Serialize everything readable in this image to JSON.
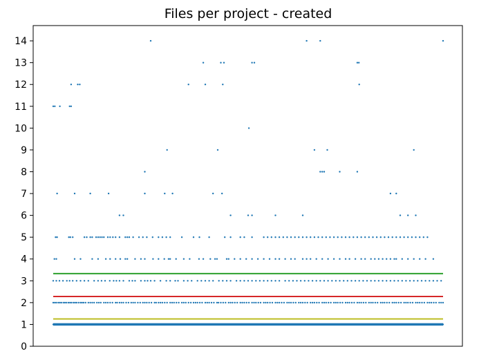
{
  "chart_data": {
    "type": "scatter",
    "title": "Files per project - created",
    "xlabel": "",
    "ylabel": "",
    "ylim": [
      0,
      14.7
    ],
    "yticks": [
      0,
      1,
      2,
      3,
      4,
      5,
      6,
      7,
      8,
      9,
      10,
      11,
      12,
      13,
      14
    ],
    "ytick_labels": [
      "0",
      "1",
      "2",
      "3",
      "4",
      "5",
      "6",
      "7",
      "8",
      "9",
      "10",
      "11",
      "12",
      "13",
      "14"
    ],
    "x_range": [
      0,
      100
    ],
    "x_ticks_visible": false,
    "grid": false,
    "series_color": "#1f77b4",
    "reference_lines": [
      {
        "value": 1.0,
        "color": "#1f77b4"
      },
      {
        "value": 1.25,
        "color": "#bcbd22"
      },
      {
        "value": 2.28,
        "color": "#d62728"
      },
      {
        "value": 3.33,
        "color": "#2ca02c"
      }
    ],
    "series": [
      {
        "values_by_level": [
          {
            "y": 1,
            "x": [
              0,
              0.5,
              1,
              1.5,
              2,
              2.5,
              3,
              3.5,
              4,
              4.5,
              5,
              5.5,
              6,
              6.5,
              7,
              7.5,
              8,
              8.5,
              9,
              9.5,
              10,
              10.5,
              11,
              11.5,
              12,
              12.5,
              13,
              13.5,
              14,
              14.5,
              15,
              15.5,
              16,
              16.5,
              17,
              17.5,
              18,
              18.5,
              19,
              19.5,
              20,
              20.5,
              21,
              21.5,
              22,
              22.5,
              23,
              23.5,
              24,
              24.5,
              25,
              25.5,
              26,
              26.5,
              27,
              27.5,
              28,
              28.5,
              29,
              29.5,
              30,
              30.5,
              31,
              31.5,
              32,
              32.5,
              33,
              33.5,
              34,
              34.5,
              35,
              35.5,
              36,
              36.5,
              37,
              37.5,
              38,
              38.5,
              39,
              39.5,
              40,
              40.5,
              41,
              41.5,
              42,
              42.5,
              43,
              43.5,
              44,
              44.5,
              45,
              45.5,
              46,
              46.5,
              47,
              47.5,
              48,
              48.5,
              49,
              49.5,
              50,
              50.5,
              51,
              51.5,
              52,
              52.5,
              53,
              53.5,
              54,
              54.5,
              55,
              55.5,
              56,
              56.5,
              57,
              57.5,
              58,
              58.5,
              59,
              59.5,
              60,
              60.5,
              61,
              61.5,
              62,
              62.5,
              63,
              63.5,
              64,
              64.5,
              65,
              65.5,
              66,
              66.5,
              67,
              67.5,
              68,
              68.5,
              69,
              69.5,
              70,
              70.5,
              71,
              71.5,
              72,
              72.5,
              73,
              73.5,
              74,
              74.5,
              75,
              75.5,
              76,
              76.5,
              77,
              77.5,
              78,
              78.5,
              79,
              79.5,
              80,
              80.5,
              81,
              81.5,
              82,
              82.5,
              83,
              83.5,
              84,
              84.5,
              85,
              85.5,
              86,
              86.5,
              87,
              87.5,
              88,
              88.5,
              89,
              89.5,
              90,
              90.5,
              91,
              91.5,
              92,
              92.5,
              93,
              93.5,
              94,
              94.5,
              95,
              95.5,
              96,
              96.5,
              97,
              97.5,
              98,
              98.5,
              99,
              99.5,
              100
            ]
          },
          {
            "y": 2,
            "x": [
              0,
              0.4,
              0.8,
              1.3,
              1.7,
              2.1,
              2.6,
              3,
              3.4,
              3.9,
              4.3,
              4.7,
              5.2,
              5.6,
              6,
              6.5,
              7,
              7.4,
              7.8,
              8.3,
              9,
              9.5,
              10,
              10.5,
              11.2,
              11.7,
              12.2,
              13,
              13.5,
              14,
              14.6,
              15.2,
              16,
              16.4,
              17,
              17.5,
              18,
              18.7,
              19.3,
              20,
              20.5,
              21,
              21.7,
              22.3,
              23,
              23.5,
              24,
              24.6,
              25.2,
              26,
              26.4,
              27,
              27.5,
              28,
              28.6,
              29.2,
              30,
              30.5,
              31,
              31.6,
              32.2,
              33,
              33.5,
              34,
              34.7,
              35.3,
              36,
              36.5,
              37,
              37.6,
              38.2,
              39,
              39.5,
              40,
              40.6,
              41.2,
              42,
              42.4,
              43,
              43.6,
              44.2,
              45,
              45.5,
              46,
              46.6,
              47.2,
              48,
              48.5,
              49,
              49.6,
              50.2,
              51,
              51.5,
              52,
              52.6,
              53.2,
              54,
              54.5,
              55,
              55.6,
              56.2,
              57,
              57.5,
              58,
              58.6,
              59.2,
              60,
              60.5,
              61,
              61.6,
              62.2,
              63,
              63.5,
              64,
              64.6,
              65.2,
              66,
              66.5,
              67,
              67.6,
              68.2,
              69,
              69.5,
              70,
              70.6,
              71.2,
              72,
              72.5,
              73,
              73.6,
              74.2,
              75,
              75.5,
              76,
              76.6,
              77.2,
              78,
              78.5,
              79,
              79.6,
              80.2,
              81,
              81.5,
              82,
              82.6,
              83.2,
              84,
              84.5,
              85,
              85.6,
              86.2,
              87,
              87.5,
              88,
              88.6,
              89.2,
              90,
              90.5,
              91,
              91.6,
              92.2,
              93,
              93.5,
              94,
              94.6,
              95.2,
              96,
              96.5,
              97,
              97.6,
              98.2,
              99,
              99.5,
              100
            ]
          },
          {
            "y": 3,
            "x": [
              0,
              0.8,
              1.6,
              2.5,
              3.5,
              4.2,
              5,
              6,
              7,
              8,
              9,
              10.5,
              11.5,
              12.4,
              13.3,
              14.5,
              15.5,
              16.2,
              17,
              18,
              19.5,
              20.3,
              21,
              22.5,
              23.5,
              24.2,
              25,
              26,
              27.5,
              29,
              30,
              31.3,
              32,
              33.5,
              34.5,
              35.5,
              37,
              38,
              39,
              40,
              41,
              42.5,
              43.5,
              44.5,
              45.5,
              47,
              48,
              49,
              50,
              51,
              52,
              53,
              54,
              55,
              56,
              57,
              58,
              59.5,
              60.5,
              61.5,
              62.5,
              63.5,
              64.5,
              65.5,
              66.5,
              67.5,
              68.5,
              69.5,
              70.5,
              71.5,
              72.5,
              73.5,
              74.5,
              75.5,
              76.5,
              77.5,
              78.5,
              79.5,
              80.5,
              81.5,
              82.5,
              83.5,
              84.5,
              85.5,
              86.5,
              87.5,
              88.5,
              89.5,
              90.5,
              91.5,
              92.5,
              93.5,
              94.5,
              95.5,
              96.5,
              97.5,
              98.5,
              99.5
            ]
          },
          {
            "y": 4,
            "x": [
              0.3,
              0.8,
              5.5,
              7,
              10,
              11.5,
              13.5,
              14.6,
              16,
              17.2,
              18.5,
              19,
              21,
              22.5,
              23.5,
              25.6,
              27,
              28.5,
              29.6,
              30,
              31.5,
              33.5,
              35,
              37.4,
              38.5,
              40.3,
              41.5,
              42,
              44.5,
              45,
              46.5,
              48,
              49.5,
              51,
              52.5,
              54,
              55.5,
              57,
              58,
              59.5,
              61,
              62,
              64,
              65,
              66,
              67.5,
              69,
              70.5,
              72,
              73.5,
              75,
              76,
              77.5,
              79,
              80,
              81.5,
              82.5,
              83.5,
              84.5,
              85.5,
              86.5,
              87.5,
              88,
              89.5,
              91,
              92.5,
              94,
              95.5,
              97.5
            ]
          },
          {
            "y": 5,
            "x": [
              0.6,
              1,
              4,
              4.4,
              5,
              8,
              8.6,
              9.5,
              10,
              11,
              11.5,
              12,
              12.5,
              13,
              14,
              14.6,
              15.3,
              16,
              17,
              18.5,
              19,
              19.5,
              20.5,
              22,
              23,
              24,
              25.5,
              27,
              28,
              29,
              30,
              33,
              36,
              37.5,
              40,
              44,
              45.5,
              48,
              49,
              51,
              54,
              55,
              56,
              57,
              58,
              59,
              60,
              61,
              62,
              63,
              64,
              65,
              66,
              67,
              68,
              69,
              70,
              71,
              72,
              73,
              74,
              75,
              76,
              77,
              78,
              79,
              80,
              81,
              82,
              83,
              84,
              85,
              86,
              87,
              88,
              89,
              90,
              91,
              92,
              93,
              94,
              95,
              96
            ]
          },
          {
            "y": 6,
            "x": [
              17,
              18,
              45.5,
              50,
              51,
              57,
              64,
              89,
              91,
              93
            ]
          },
          {
            "y": 7,
            "x": [
              1,
              5.5,
              9.5,
              14.2,
              23.5,
              28.6,
              30.6,
              41,
              43.3,
              86.5,
              88
            ]
          },
          {
            "y": 8,
            "x": [
              23.5,
              68.5,
              69,
              69.5,
              73.5,
              78
            ]
          },
          {
            "y": 9,
            "x": [
              29.2,
              42.2,
              67,
              70.3,
              92.5
            ]
          },
          {
            "y": 10,
            "x": [
              50.2
            ]
          },
          {
            "y": 11,
            "x": [
              0,
              0.4,
              1.7,
              4.2,
              4.6
            ]
          },
          {
            "y": 12,
            "x": [
              4.6,
              6.3,
              6.8,
              34.7,
              39,
              43.5,
              78.5
            ]
          },
          {
            "y": 13,
            "x": [
              38.5,
              43,
              43.8,
              51,
              51.6,
              78,
              78.4
            ]
          },
          {
            "y": 14,
            "x": [
              25,
              65,
              68.5,
              100
            ]
          }
        ]
      }
    ]
  }
}
